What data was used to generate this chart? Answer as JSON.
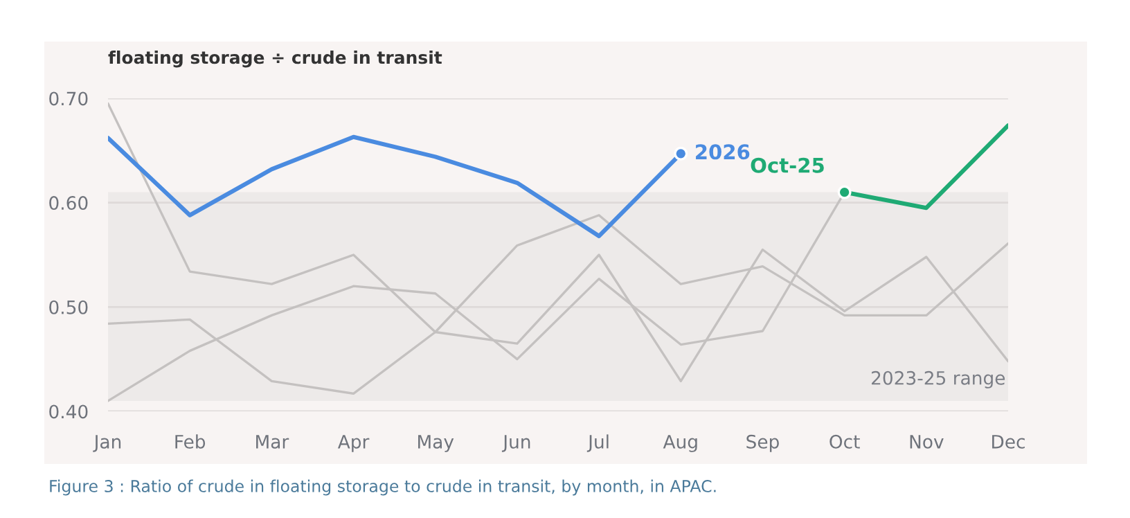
{
  "chart_data": {
    "type": "line",
    "title": "floating storage ÷ crude in transit",
    "categories": [
      "Jan",
      "Feb",
      "Mar",
      "Apr",
      "May",
      "Jun",
      "Jul",
      "Aug",
      "Sep",
      "Oct",
      "Nov",
      "Dec"
    ],
    "series": [
      {
        "color": "#c4c1c0",
        "values": [
          0.695,
          0.534,
          0.522,
          0.55,
          0.476,
          0.465,
          0.55,
          0.429,
          0.555,
          0.496,
          0.548,
          0.448
        ]
      },
      {
        "color": "#c4c1c0",
        "values": [
          0.41,
          0.458,
          0.492,
          0.52,
          0.513,
          0.45,
          0.527,
          0.464,
          0.477,
          0.61,
          null,
          null
        ]
      },
      {
        "color": "#c4c1c0",
        "values": [
          0.484,
          0.488,
          0.429,
          0.417,
          0.476,
          0.559,
          0.588,
          0.522,
          0.539,
          0.492,
          0.492,
          0.561
        ]
      },
      {
        "name": "2026",
        "color": "#4a8be0",
        "values": [
          0.662,
          0.588,
          0.632,
          0.663,
          0.644,
          0.619,
          0.568,
          0.647,
          null,
          null,
          null,
          null
        ]
      },
      {
        "name": "Oct-25",
        "color": "#1faa74",
        "values": [
          null,
          null,
          null,
          null,
          null,
          null,
          null,
          null,
          null,
          0.61,
          0.595,
          0.674
        ]
      }
    ],
    "ylim": [
      0.4,
      0.7
    ],
    "yticks": [
      {
        "value": 0.4,
        "label": "0.40"
      },
      {
        "value": 0.5,
        "label": "0.50"
      },
      {
        "value": 0.6,
        "label": "0.60"
      },
      {
        "value": 0.7,
        "label": "0.70"
      }
    ],
    "grid": "y",
    "bands": [
      {
        "axis": "y",
        "from": 0.41,
        "to": 0.61,
        "label": "2023-25 range",
        "color": "#edeae9"
      }
    ],
    "annotations": [
      "Figure 3 : Ratio of crude in floating storage to crude in transit, by month, in APAC."
    ]
  }
}
